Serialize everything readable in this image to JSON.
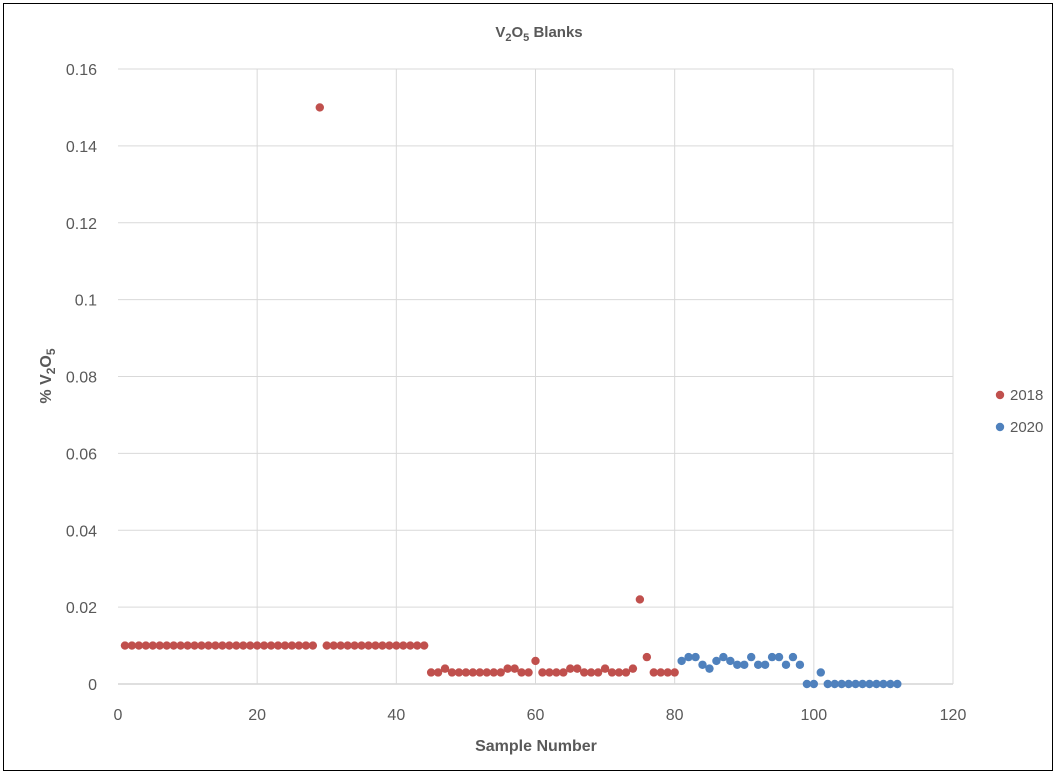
{
  "chart_data": {
    "type": "scatter",
    "title": {
      "prefix": "V",
      "sub1": "2",
      "mid": "O",
      "sub2": "5",
      "suffix": " Blanks"
    },
    "xlabel": "Sample Number",
    "ylabel": {
      "prefix": "% V",
      "sub1": "2",
      "mid": "O",
      "sub2": "5"
    },
    "xlim": [
      0,
      120
    ],
    "ylim": [
      0,
      0.16
    ],
    "x_ticks": [
      "0",
      "20",
      "40",
      "60",
      "80",
      "100",
      "120"
    ],
    "y_ticks": [
      "0",
      "0.02",
      "0.04",
      "0.06",
      "0.08",
      "0.1",
      "0.12",
      "0.14",
      "0.16"
    ],
    "grid": true,
    "legend_position": "right",
    "series": [
      {
        "name": "2018",
        "color": "#c0504d",
        "points": [
          [
            1,
            0.01
          ],
          [
            2,
            0.01
          ],
          [
            3,
            0.01
          ],
          [
            4,
            0.01
          ],
          [
            5,
            0.01
          ],
          [
            6,
            0.01
          ],
          [
            7,
            0.01
          ],
          [
            8,
            0.01
          ],
          [
            9,
            0.01
          ],
          [
            10,
            0.01
          ],
          [
            11,
            0.01
          ],
          [
            12,
            0.01
          ],
          [
            13,
            0.01
          ],
          [
            14,
            0.01
          ],
          [
            15,
            0.01
          ],
          [
            16,
            0.01
          ],
          [
            17,
            0.01
          ],
          [
            18,
            0.01
          ],
          [
            19,
            0.01
          ],
          [
            20,
            0.01
          ],
          [
            21,
            0.01
          ],
          [
            22,
            0.01
          ],
          [
            23,
            0.01
          ],
          [
            24,
            0.01
          ],
          [
            25,
            0.01
          ],
          [
            26,
            0.01
          ],
          [
            27,
            0.01
          ],
          [
            28,
            0.01
          ],
          [
            29,
            0.15
          ],
          [
            30,
            0.01
          ],
          [
            31,
            0.01
          ],
          [
            32,
            0.01
          ],
          [
            33,
            0.01
          ],
          [
            34,
            0.01
          ],
          [
            35,
            0.01
          ],
          [
            36,
            0.01
          ],
          [
            37,
            0.01
          ],
          [
            38,
            0.01
          ],
          [
            39,
            0.01
          ],
          [
            40,
            0.01
          ],
          [
            41,
            0.01
          ],
          [
            42,
            0.01
          ],
          [
            43,
            0.01
          ],
          [
            44,
            0.01
          ],
          [
            45,
            0.003
          ],
          [
            46,
            0.003
          ],
          [
            47,
            0.004
          ],
          [
            48,
            0.003
          ],
          [
            49,
            0.003
          ],
          [
            50,
            0.003
          ],
          [
            51,
            0.003
          ],
          [
            52,
            0.003
          ],
          [
            53,
            0.003
          ],
          [
            54,
            0.003
          ],
          [
            55,
            0.003
          ],
          [
            56,
            0.004
          ],
          [
            57,
            0.004
          ],
          [
            58,
            0.003
          ],
          [
            59,
            0.003
          ],
          [
            60,
            0.006
          ],
          [
            61,
            0.003
          ],
          [
            62,
            0.003
          ],
          [
            63,
            0.003
          ],
          [
            64,
            0.003
          ],
          [
            65,
            0.004
          ],
          [
            66,
            0.004
          ],
          [
            67,
            0.003
          ],
          [
            68,
            0.003
          ],
          [
            69,
            0.003
          ],
          [
            70,
            0.004
          ],
          [
            71,
            0.003
          ],
          [
            72,
            0.003
          ],
          [
            73,
            0.003
          ],
          [
            74,
            0.004
          ],
          [
            75,
            0.022
          ],
          [
            76,
            0.007
          ],
          [
            77,
            0.003
          ],
          [
            78,
            0.003
          ],
          [
            79,
            0.003
          ],
          [
            80,
            0.003
          ]
        ]
      },
      {
        "name": "2020",
        "color": "#4f81bd",
        "points": [
          [
            81,
            0.006
          ],
          [
            82,
            0.007
          ],
          [
            83,
            0.007
          ],
          [
            84,
            0.005
          ],
          [
            85,
            0.004
          ],
          [
            86,
            0.006
          ],
          [
            87,
            0.007
          ],
          [
            88,
            0.006
          ],
          [
            89,
            0.005
          ],
          [
            90,
            0.005
          ],
          [
            91,
            0.007
          ],
          [
            92,
            0.005
          ],
          [
            93,
            0.005
          ],
          [
            94,
            0.007
          ],
          [
            95,
            0.007
          ],
          [
            96,
            0.005
          ],
          [
            97,
            0.007
          ],
          [
            98,
            0.005
          ],
          [
            99,
            0
          ],
          [
            100,
            0
          ],
          [
            101,
            0.003
          ],
          [
            102,
            0
          ],
          [
            103,
            0
          ],
          [
            104,
            0
          ],
          [
            105,
            0
          ],
          [
            106,
            0
          ],
          [
            107,
            0
          ],
          [
            108,
            0
          ],
          [
            109,
            0
          ],
          [
            110,
            0
          ],
          [
            111,
            0
          ],
          [
            112,
            0
          ]
        ]
      }
    ]
  }
}
